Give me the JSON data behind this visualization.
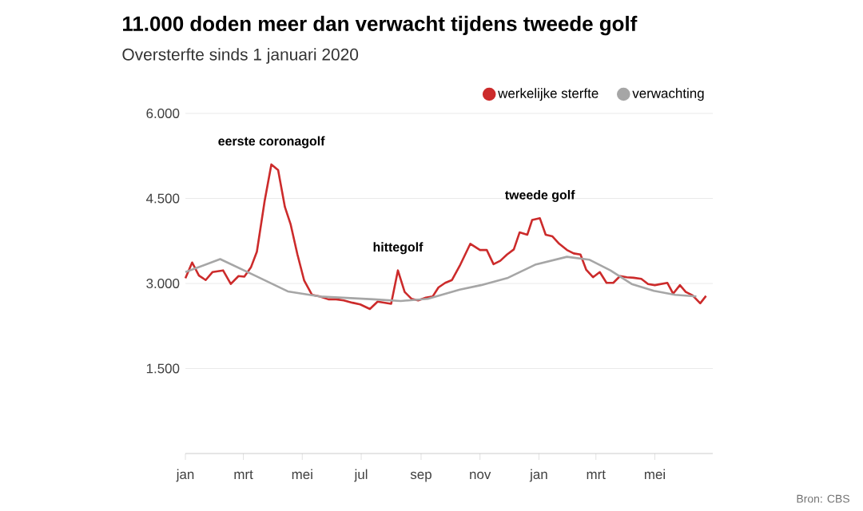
{
  "chart_data": {
    "type": "line",
    "title": "11.000 doden meer dan verwacht tijdens tweede golf",
    "subtitle": "Oversterfte sinds 1 januari 2020",
    "annotations": [
      {
        "text": "eerste coronagolf",
        "x": "2020-03-30",
        "y": 5100
      },
      {
        "text": "hittegolf",
        "x": "2020-08-08",
        "y": 3230
      },
      {
        "text": "tweede golf",
        "x": "2021-01-02",
        "y": 4150
      },
      "Bron: CBS"
    ],
    "series": [
      {
        "name": "werkelijke sterfte",
        "color": "#cc2b2b",
        "x": [
          "2020-01-01",
          "2020-01-08",
          "2020-01-15",
          "2020-01-22",
          "2020-01-29",
          "2020-02-09",
          "2020-02-17",
          "2020-02-25",
          "2020-03-02",
          "2020-03-09",
          "2020-03-15",
          "2020-03-23",
          "2020-03-30",
          "2020-04-06",
          "2020-04-13",
          "2020-04-19",
          "2020-04-26",
          "2020-05-03",
          "2020-05-11",
          "2020-05-19",
          "2020-05-28",
          "2020-06-05",
          "2020-06-13",
          "2020-06-22",
          "2020-06-30",
          "2020-07-10",
          "2020-07-18",
          "2020-07-25",
          "2020-08-01",
          "2020-08-08",
          "2020-08-15",
          "2020-08-22",
          "2020-08-29",
          "2020-09-06",
          "2020-09-13",
          "2020-09-19",
          "2020-09-26",
          "2020-10-03",
          "2020-10-11",
          "2020-10-22",
          "2020-11-01",
          "2020-11-08",
          "2020-11-15",
          "2020-11-22",
          "2020-11-29",
          "2020-12-06",
          "2020-12-12",
          "2020-12-20",
          "2020-12-25",
          "2021-01-02",
          "2021-01-08",
          "2021-01-15",
          "2021-01-22",
          "2021-01-30",
          "2021-02-06",
          "2021-02-13",
          "2021-02-19",
          "2021-02-26",
          "2021-03-05",
          "2021-03-12",
          "2021-03-19",
          "2021-03-26",
          "2021-04-02",
          "2021-04-09",
          "2021-04-17",
          "2021-04-24",
          "2021-05-01",
          "2021-05-14",
          "2021-05-20",
          "2021-05-27",
          "2021-06-02",
          "2021-06-09",
          "2021-06-17",
          "2021-06-23"
        ],
        "values": [
          3090,
          3370,
          3140,
          3060,
          3200,
          3230,
          2990,
          3130,
          3120,
          3290,
          3560,
          4450,
          5100,
          5000,
          4350,
          4040,
          3510,
          3050,
          2800,
          2770,
          2720,
          2720,
          2700,
          2660,
          2630,
          2550,
          2680,
          2660,
          2640,
          3230,
          2850,
          2730,
          2700,
          2750,
          2770,
          2930,
          3010,
          3060,
          3310,
          3700,
          3590,
          3590,
          3340,
          3400,
          3510,
          3600,
          3900,
          3860,
          4120,
          4150,
          3860,
          3830,
          3700,
          3590,
          3530,
          3510,
          3240,
          3110,
          3200,
          3010,
          3010,
          3130,
          3110,
          3100,
          3080,
          2990,
          2970,
          3010,
          2820,
          2970,
          2850,
          2790,
          2650,
          2780
        ]
      },
      {
        "name": "verwachting",
        "color": "#a6a6a6",
        "x": [
          "2020-01-01",
          "2020-02-06",
          "2020-03-13",
          "2020-04-16",
          "2020-05-19",
          "2020-07-14",
          "2020-08-11",
          "2020-09-08",
          "2020-10-11",
          "2020-11-02",
          "2020-11-30",
          "2020-12-28",
          "2021-01-30",
          "2021-02-22",
          "2021-03-16",
          "2021-04-07",
          "2021-04-30",
          "2021-05-22",
          "2021-06-13"
        ],
        "values": [
          3200,
          3430,
          3140,
          2860,
          2770,
          2720,
          2690,
          2730,
          2890,
          2970,
          3100,
          3330,
          3470,
          3420,
          3230,
          2990,
          2870,
          2800,
          2770
        ]
      }
    ],
    "xlim": [
      "2020-01-01",
      "2021-06-30"
    ],
    "xticks": [
      {
        "value": "2020-01-01",
        "label": "jan"
      },
      {
        "value": "2020-03-01",
        "label": "mrt"
      },
      {
        "value": "2020-05-01",
        "label": "mei"
      },
      {
        "value": "2020-07-01",
        "label": "jul"
      },
      {
        "value": "2020-09-01",
        "label": "sep"
      },
      {
        "value": "2020-11-01",
        "label": "nov"
      },
      {
        "value": "2021-01-01",
        "label": "jan"
      },
      {
        "value": "2021-03-01",
        "label": "mrt"
      },
      {
        "value": "2021-05-01",
        "label": "mei"
      }
    ],
    "ylim": [
      0,
      6000
    ],
    "yticks": [
      {
        "value": 1500,
        "label": "1.500"
      },
      {
        "value": 3000,
        "label": "3.000"
      },
      {
        "value": 4500,
        "label": "4.500"
      },
      {
        "value": 6000,
        "label": "6.000"
      }
    ],
    "grid": "y",
    "legend": "top right",
    "line_style": "solid"
  }
}
